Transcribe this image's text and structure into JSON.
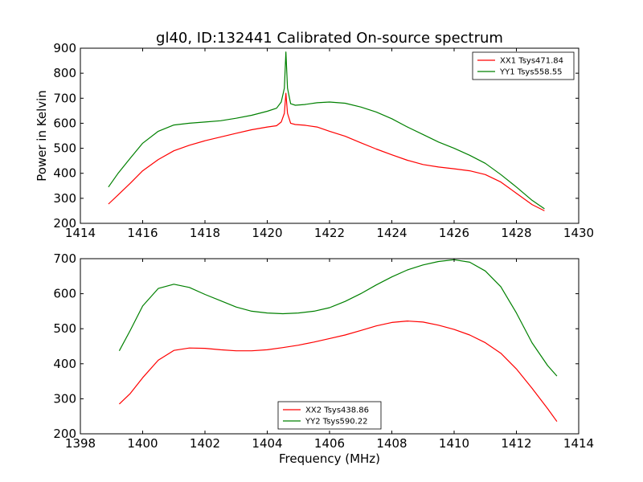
{
  "chart_data": [
    {
      "type": "line",
      "title": "gl40, ID:132441 Calibrated On-source spectrum",
      "xlabel": "",
      "ylabel": "Power in Kelvin",
      "xlim": [
        1414,
        1430
      ],
      "ylim": [
        200,
        900
      ],
      "xticks": [
        1414,
        1416,
        1418,
        1420,
        1422,
        1424,
        1426,
        1428,
        1430
      ],
      "yticks": [
        200,
        300,
        400,
        500,
        600,
        700,
        800,
        900
      ],
      "legend_position": "top-right",
      "series": [
        {
          "name": "XX1 Tsys471.84",
          "color": "#ff0000",
          "x": [
            1414.9,
            1415.2,
            1415.6,
            1416.0,
            1416.5,
            1417.0,
            1417.5,
            1418.0,
            1418.5,
            1419.0,
            1419.5,
            1420.0,
            1420.3,
            1420.45,
            1420.55,
            1420.6,
            1420.65,
            1420.75,
            1420.9,
            1421.2,
            1421.6,
            1422.0,
            1422.5,
            1423.0,
            1423.5,
            1424.0,
            1424.5,
            1425.0,
            1425.5,
            1426.0,
            1426.5,
            1427.0,
            1427.5,
            1428.0,
            1428.5,
            1428.9
          ],
          "y": [
            277,
            312,
            360,
            410,
            455,
            490,
            512,
            530,
            545,
            560,
            574,
            585,
            590,
            605,
            640,
            720,
            640,
            600,
            595,
            592,
            585,
            568,
            548,
            522,
            497,
            474,
            452,
            435,
            425,
            418,
            410,
            395,
            365,
            320,
            275,
            250
          ]
        },
        {
          "name": "YY1 Tsys558.55",
          "color": "#008000",
          "x": [
            1414.9,
            1415.2,
            1415.6,
            1416.0,
            1416.5,
            1417.0,
            1417.5,
            1418.0,
            1418.5,
            1419.0,
            1419.5,
            1420.0,
            1420.3,
            1420.45,
            1420.55,
            1420.6,
            1420.65,
            1420.75,
            1420.9,
            1421.2,
            1421.6,
            1422.0,
            1422.5,
            1423.0,
            1423.5,
            1424.0,
            1424.5,
            1425.0,
            1425.5,
            1426.0,
            1426.5,
            1427.0,
            1427.5,
            1428.0,
            1428.5,
            1428.9
          ],
          "y": [
            345,
            398,
            460,
            520,
            568,
            593,
            600,
            605,
            610,
            620,
            632,
            648,
            660,
            685,
            740,
            885,
            740,
            678,
            672,
            675,
            682,
            685,
            680,
            665,
            645,
            618,
            585,
            555,
            525,
            500,
            472,
            440,
            395,
            345,
            292,
            258
          ]
        }
      ]
    },
    {
      "type": "line",
      "title": "",
      "xlabel": "Frequency (MHz)",
      "ylabel": "",
      "xlim": [
        1398,
        1414
      ],
      "ylim": [
        200,
        700
      ],
      "xticks": [
        1398,
        1400,
        1402,
        1404,
        1406,
        1408,
        1410,
        1412,
        1414
      ],
      "yticks": [
        200,
        300,
        400,
        500,
        600,
        700
      ],
      "legend_position": "lower-center",
      "series": [
        {
          "name": "XX2 Tsys438.86",
          "color": "#ff0000",
          "x": [
            1399.25,
            1399.6,
            1400.0,
            1400.5,
            1401.0,
            1401.5,
            1402.0,
            1402.5,
            1403.0,
            1403.5,
            1404.0,
            1404.5,
            1405.0,
            1405.5,
            1406.0,
            1406.5,
            1407.0,
            1407.5,
            1408.0,
            1408.5,
            1409.0,
            1409.5,
            1410.0,
            1410.5,
            1411.0,
            1411.5,
            1412.0,
            1412.5,
            1413.0,
            1413.3
          ],
          "y": [
            285,
            315,
            360,
            410,
            438,
            445,
            444,
            440,
            437,
            437,
            440,
            446,
            453,
            462,
            472,
            482,
            495,
            508,
            518,
            522,
            519,
            510,
            498,
            482,
            460,
            430,
            385,
            330,
            272,
            235
          ]
        },
        {
          "name": "YY2 Tsys590.22",
          "color": "#008000",
          "x": [
            1399.25,
            1399.6,
            1400.0,
            1400.5,
            1401.0,
            1401.5,
            1402.0,
            1402.5,
            1403.0,
            1403.5,
            1404.0,
            1404.5,
            1405.0,
            1405.5,
            1406.0,
            1406.5,
            1407.0,
            1407.5,
            1408.0,
            1408.5,
            1409.0,
            1409.5,
            1410.0,
            1410.5,
            1411.0,
            1411.5,
            1412.0,
            1412.5,
            1413.0,
            1413.3
          ],
          "y": [
            437,
            495,
            565,
            615,
            627,
            618,
            598,
            580,
            562,
            550,
            545,
            543,
            545,
            550,
            560,
            578,
            600,
            625,
            648,
            668,
            682,
            692,
            697,
            690,
            665,
            620,
            545,
            460,
            395,
            365
          ]
        }
      ]
    }
  ]
}
